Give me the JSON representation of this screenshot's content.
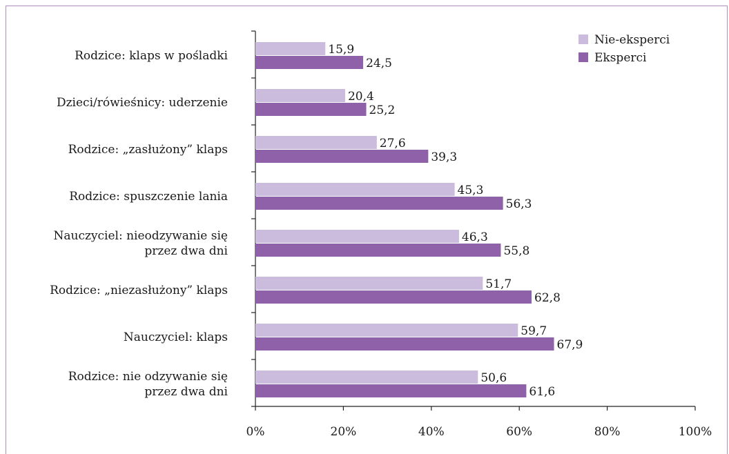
{
  "chart_data": {
    "type": "bar",
    "orientation": "horizontal",
    "categories": [
      [
        "Rodzice: klaps w pośladki"
      ],
      [
        "Dzieci/rówieśnicy: uderzenie"
      ],
      [
        "Rodzice: „zasłużony” klaps"
      ],
      [
        "Rodzice: spuszczenie lania"
      ],
      [
        "Nauczyciel: nieodzywanie się",
        "przez dwa dni"
      ],
      [
        "Rodzice: „niezasłużony” klaps"
      ],
      [
        "Nauczyciel: klaps"
      ],
      [
        "Rodzice: nie odzywanie się",
        "przez dwa dni"
      ]
    ],
    "series": [
      {
        "name": "Nie-eksperci",
        "color": "#cbbbdd",
        "values": [
          15.9,
          20.4,
          27.6,
          45.3,
          46.3,
          51.7,
          59.7,
          50.6
        ],
        "labels": [
          "15,9",
          "20,4",
          "27,6",
          "45,3",
          "46,3",
          "51,7",
          "59,7",
          "50,6"
        ]
      },
      {
        "name": "Eksperci",
        "color": "#8f61a9",
        "values": [
          24.5,
          25.2,
          39.3,
          56.3,
          55.8,
          62.8,
          67.9,
          61.6
        ],
        "labels": [
          "24,5",
          "25,2",
          "39,3",
          "56,3",
          "55,8",
          "62,8",
          "67,9",
          "61,6"
        ]
      }
    ],
    "xlim": [
      0,
      100
    ],
    "xticks": [
      0,
      20,
      40,
      60,
      80,
      100
    ],
    "xtick_labels": [
      "0%",
      "20%",
      "40%",
      "60%",
      "80%",
      "100%"
    ],
    "grid": false,
    "legend_position": "top-right",
    "title": "",
    "xlabel": "",
    "ylabel": ""
  }
}
